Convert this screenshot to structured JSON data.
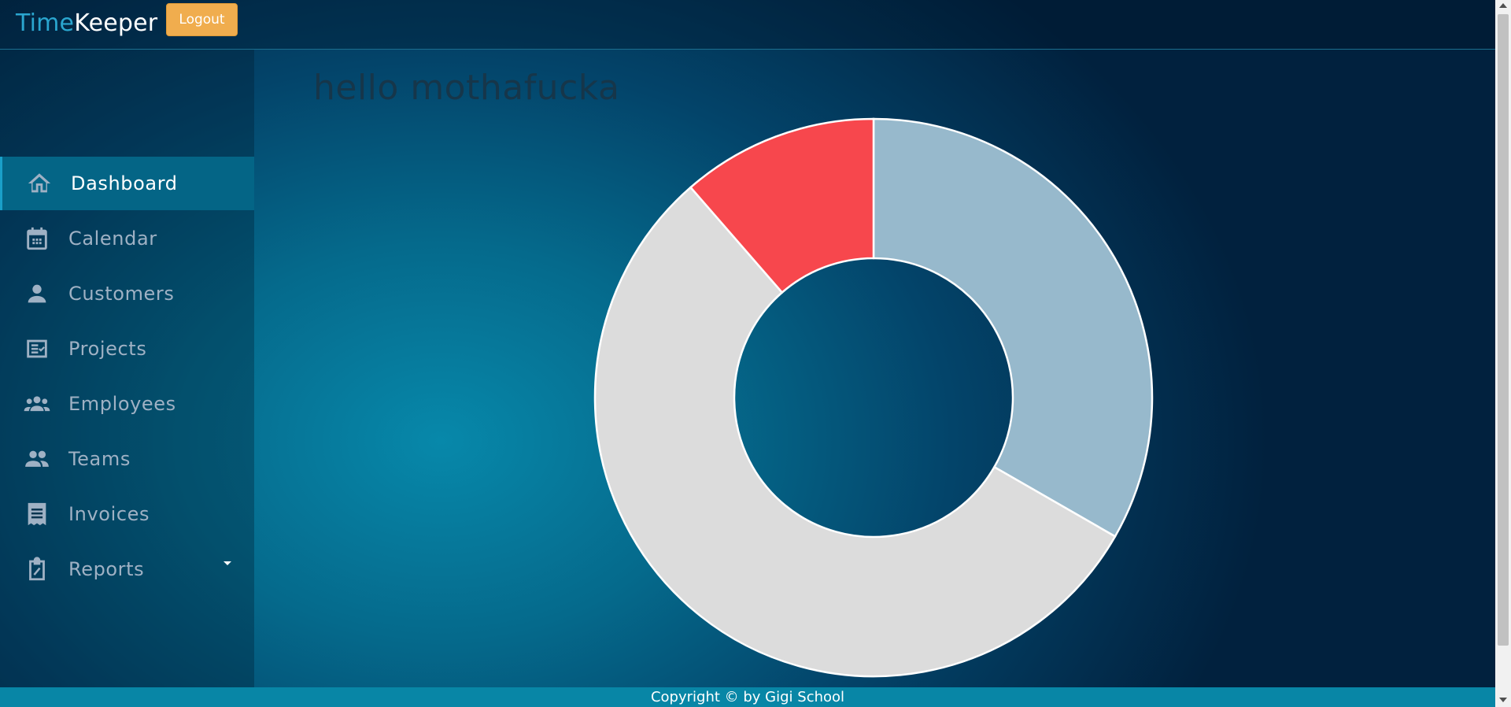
{
  "header": {
    "brand_part1": "Time",
    "brand_part2": "Keeper",
    "logout_label": "Logout"
  },
  "sidebar": {
    "items": [
      {
        "label": "Dashboard",
        "icon": "home-icon",
        "active": true
      },
      {
        "label": "Calendar",
        "icon": "calendar-icon",
        "active": false
      },
      {
        "label": "Customers",
        "icon": "person-icon",
        "active": false
      },
      {
        "label": "Projects",
        "icon": "checklist-icon",
        "active": false
      },
      {
        "label": "Employees",
        "icon": "group-icon",
        "active": false
      },
      {
        "label": "Teams",
        "icon": "people-icon",
        "active": false
      },
      {
        "label": "Invoices",
        "icon": "receipt-icon",
        "active": false
      },
      {
        "label": "Reports",
        "icon": "clipboard-icon",
        "active": false,
        "has_dropdown": true
      }
    ]
  },
  "main": {
    "heading": "hello mothafucka"
  },
  "chart_data": {
    "type": "doughnut",
    "title": "",
    "values": [
      33.3,
      55.3,
      11.4
    ],
    "colors": [
      "#97b9cc",
      "#dcdcdc",
      "#f7474d"
    ],
    "legend": "none"
  },
  "footer": {
    "copyright": "Copyright © by Gigi School"
  },
  "colors": {
    "accent": "#f0ad4e",
    "active_nav": "#046586",
    "footer": "#0886a6"
  }
}
